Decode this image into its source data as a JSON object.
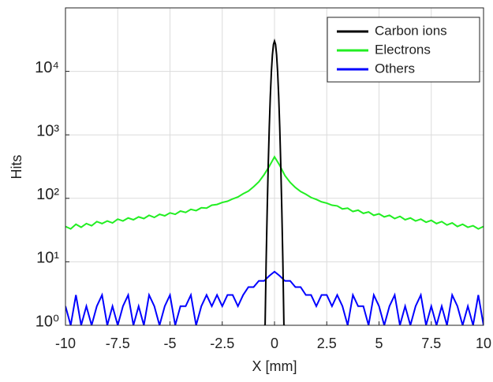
{
  "chart_data": {
    "type": "line",
    "xlabel": "X [mm]",
    "ylabel": "Hits",
    "log_y": true,
    "grid": true,
    "legend": "top-right",
    "xlim": [
      -10,
      10
    ],
    "xticks": [
      -10,
      -7.5,
      -5,
      -2.5,
      0,
      2.5,
      5,
      7.5,
      10
    ],
    "ylim": [
      1,
      100000
    ],
    "yticks": [
      {
        "value": 1,
        "label": "10⁰"
      },
      {
        "value": 10,
        "label": "10¹"
      },
      {
        "value": 100,
        "label": "10²"
      },
      {
        "value": 1000,
        "label": "10³"
      },
      {
        "value": 10000,
        "label": "10⁴"
      }
    ],
    "x": [
      -10,
      -9.75,
      -9.5,
      -9.25,
      -9,
      -8.75,
      -8.5,
      -8.25,
      -8,
      -7.75,
      -7.5,
      -7.25,
      -7,
      -6.75,
      -6.5,
      -6.25,
      -6,
      -5.75,
      -5.5,
      -5.25,
      -5,
      -4.75,
      -4.5,
      -4.25,
      -4,
      -3.75,
      -3.5,
      -3.25,
      -3,
      -2.75,
      -2.5,
      -2.25,
      -2,
      -1.75,
      -1.5,
      -1.25,
      -1,
      -0.75,
      -0.5,
      -0.25,
      0,
      0.25,
      0.5,
      0.75,
      1,
      1.25,
      1.5,
      1.75,
      2,
      2.25,
      2.5,
      2.75,
      3,
      3.25,
      3.5,
      3.75,
      4,
      4.25,
      4.5,
      4.75,
      5,
      5.25,
      5.5,
      5.75,
      6,
      6.25,
      6.5,
      6.75,
      7,
      7.25,
      7.5,
      7.75,
      8,
      8.25,
      8.5,
      8.75,
      9,
      9.25,
      9.5,
      9.75,
      10
    ],
    "series": [
      {
        "name": "Carbon ions",
        "color": "#000000",
        "x": [
          -0.5,
          -0.45,
          -0.4,
          -0.35,
          -0.3,
          -0.25,
          -0.2,
          -0.15,
          -0.1,
          -0.05,
          0,
          0.05,
          0.1,
          0.15,
          0.2,
          0.25,
          0.3,
          0.35,
          0.4,
          0.45,
          0.5
        ],
        "values": [
          1,
          1,
          10,
          65,
          333,
          1320,
          4060,
          9740,
          18200,
          26500,
          30000,
          26500,
          18200,
          9740,
          4060,
          1320,
          333,
          65,
          10,
          1,
          1
        ]
      },
      {
        "name": "Electrons",
        "color": "#22ee22",
        "values": [
          36,
          33,
          39,
          35,
          40,
          37,
          43,
          40,
          44,
          41,
          47,
          44,
          49,
          46,
          51,
          48,
          54,
          50,
          56,
          53,
          59,
          56,
          63,
          60,
          67,
          64,
          71,
          70,
          78,
          80,
          86,
          90,
          98,
          105,
          118,
          130,
          152,
          182,
          235,
          320,
          450,
          330,
          228,
          178,
          148,
          128,
          116,
          103,
          96,
          88,
          84,
          78,
          76,
          68,
          70,
          62,
          65,
          58,
          61,
          54,
          57,
          51,
          54,
          48,
          52,
          46,
          49,
          44,
          47,
          42,
          45,
          40,
          43,
          38,
          41,
          36,
          39,
          35,
          37,
          33,
          36
        ]
      },
      {
        "name": "Others",
        "color": "#0000ff",
        "values": [
          2,
          1,
          3,
          1,
          2,
          1,
          2,
          3,
          1,
          2,
          1,
          2,
          3,
          1,
          2,
          1,
          3,
          2,
          1,
          2,
          3,
          1,
          2,
          2,
          3,
          1,
          2,
          3,
          2,
          3,
          2,
          3,
          3,
          2,
          3,
          4,
          4,
          5,
          5,
          6,
          7,
          6,
          5,
          5,
          4,
          4,
          3,
          3,
          2,
          3,
          3,
          2,
          3,
          2,
          1,
          3,
          2,
          2,
          1,
          3,
          2,
          1,
          2,
          3,
          1,
          2,
          1,
          2,
          3,
          1,
          2,
          1,
          2,
          1,
          3,
          2,
          1,
          2,
          1,
          3,
          1
        ]
      }
    ]
  }
}
